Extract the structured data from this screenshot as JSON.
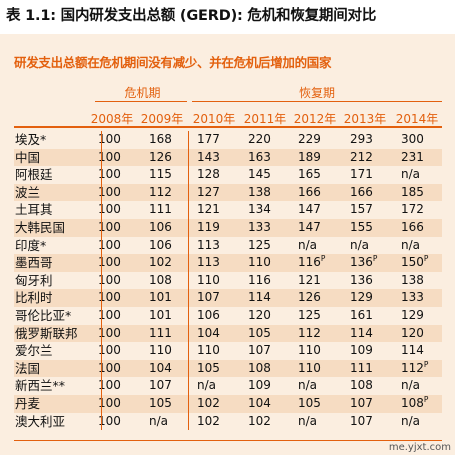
{
  "title": "表 1.1: 国内研发支出总额 (GERD): 危机和恢复期间对比",
  "subtitle": "研发支出总额在危机期间没有减少、并在危机后增加的国家",
  "groups": {
    "crisis": "危机期",
    "recovery": "恢复期"
  },
  "years": [
    "2008年",
    "2009年",
    "2010年",
    "2011年",
    "2012年",
    "2013年",
    "2014年"
  ],
  "rows": [
    {
      "country": "埃及*",
      "values": [
        "100",
        "168",
        "177",
        "220",
        "229",
        "293",
        "300"
      ],
      "sup": [
        "",
        "",
        "",
        "",
        "",
        "",
        ""
      ]
    },
    {
      "country": "中国",
      "values": [
        "100",
        "126",
        "143",
        "163",
        "189",
        "212",
        "231"
      ],
      "sup": [
        "",
        "",
        "",
        "",
        "",
        "",
        ""
      ]
    },
    {
      "country": "阿根廷",
      "values": [
        "100",
        "115",
        "128",
        "145",
        "165",
        "171",
        "n/a"
      ],
      "sup": [
        "",
        "",
        "",
        "",
        "",
        "",
        ""
      ]
    },
    {
      "country": "波兰",
      "values": [
        "100",
        "112",
        "127",
        "138",
        "166",
        "166",
        "185"
      ],
      "sup": [
        "",
        "",
        "",
        "",
        "",
        "",
        ""
      ]
    },
    {
      "country": "土耳其",
      "values": [
        "100",
        "111",
        "121",
        "134",
        "147",
        "157",
        "172"
      ],
      "sup": [
        "",
        "",
        "",
        "",
        "",
        "",
        ""
      ]
    },
    {
      "country": "大韩民国",
      "values": [
        "100",
        "106",
        "119",
        "133",
        "147",
        "155",
        "166"
      ],
      "sup": [
        "",
        "",
        "",
        "",
        "",
        "",
        ""
      ]
    },
    {
      "country": "印度*",
      "values": [
        "100",
        "106",
        "113",
        "125",
        "n/a",
        "n/a",
        "n/a"
      ],
      "sup": [
        "",
        "",
        "",
        "",
        "",
        "",
        ""
      ]
    },
    {
      "country": "墨西哥",
      "values": [
        "100",
        "102",
        "113",
        "110",
        "116",
        "136",
        "150"
      ],
      "sup": [
        "",
        "",
        "",
        "",
        "P",
        "P",
        "P"
      ]
    },
    {
      "country": "匈牙利",
      "values": [
        "100",
        "108",
        "110",
        "116",
        "121",
        "136",
        "138"
      ],
      "sup": [
        "",
        "",
        "",
        "",
        "",
        "",
        ""
      ]
    },
    {
      "country": "比利时",
      "values": [
        "100",
        "101",
        "107",
        "114",
        "126",
        "129",
        "133"
      ],
      "sup": [
        "",
        "",
        "",
        "",
        "",
        "",
        ""
      ]
    },
    {
      "country": "哥伦比亚*",
      "values": [
        "100",
        "101",
        "106",
        "120",
        "125",
        "161",
        "129"
      ],
      "sup": [
        "",
        "",
        "",
        "",
        "",
        "",
        ""
      ]
    },
    {
      "country": "俄罗斯联邦",
      "values": [
        "100",
        "111",
        "104",
        "105",
        "112",
        "114",
        "120"
      ],
      "sup": [
        "",
        "",
        "",
        "",
        "",
        "",
        ""
      ]
    },
    {
      "country": "爱尔兰",
      "values": [
        "100",
        "110",
        "110",
        "107",
        "110",
        "109",
        "114"
      ],
      "sup": [
        "",
        "",
        "",
        "",
        "",
        "",
        ""
      ]
    },
    {
      "country": "法国",
      "values": [
        "100",
        "104",
        "105",
        "108",
        "110",
        "111",
        "112"
      ],
      "sup": [
        "",
        "",
        "",
        "",
        "",
        "",
        "P"
      ]
    },
    {
      "country": "新西兰**",
      "values": [
        "100",
        "107",
        "n/a",
        "109",
        "n/a",
        "108",
        "n/a"
      ],
      "sup": [
        "",
        "",
        "",
        "",
        "",
        "",
        ""
      ]
    },
    {
      "country": "丹麦",
      "values": [
        "100",
        "105",
        "102",
        "104",
        "105",
        "107",
        "108"
      ],
      "sup": [
        "",
        "",
        "",
        "",
        "",
        "",
        "P"
      ]
    },
    {
      "country": "澳大利亚",
      "values": [
        "100",
        "n/a",
        "102",
        "102",
        "n/a",
        "107",
        "n/a"
      ],
      "sup": [
        "",
        "",
        "",
        "",
        "",
        "",
        ""
      ]
    }
  ],
  "colors": {
    "accent": "#e3600e",
    "panel": "#fbeee0",
    "stripe": "#f6dcc2"
  },
  "watermark": "me.yjxt.com"
}
